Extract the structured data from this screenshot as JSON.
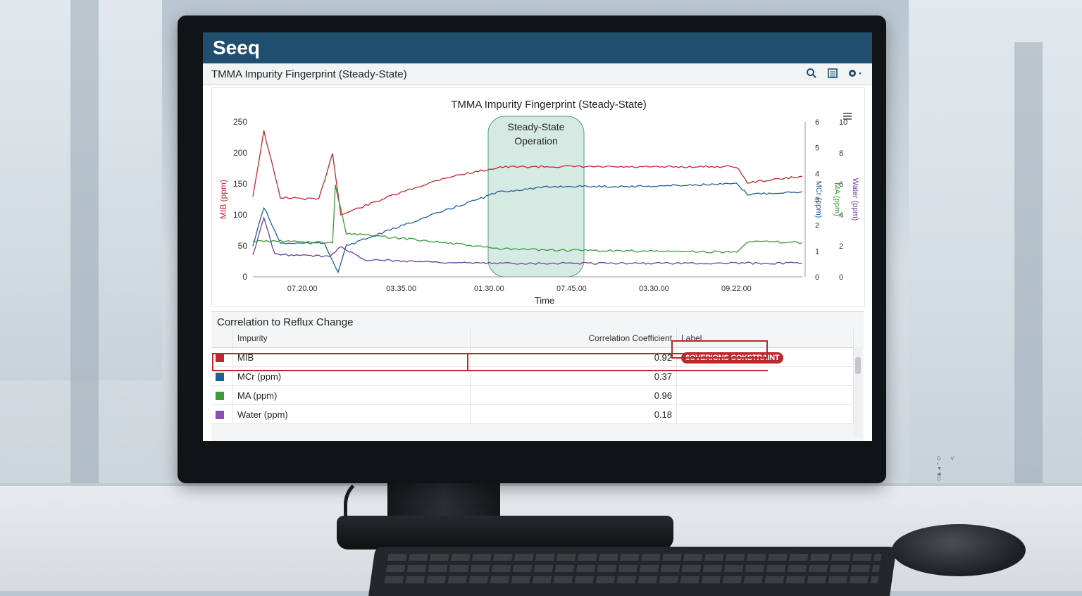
{
  "app": {
    "logo": "Seeq",
    "doc_title": "TMMA Impurity Fingerprint (Steady-State)"
  },
  "toolbar": {
    "icons": [
      "search-icon",
      "list-icon",
      "gear-icon"
    ]
  },
  "chart": {
    "title": "TMMA Impurity Fingerprint (Steady-State)",
    "xlabel": "Time",
    "ylabel_left": "MIB (ppm)",
    "ylabel_right_1": "MCr (ppm)",
    "ylabel_right_2": "MA (ppm)",
    "ylabel_right_3": "Water (ppm)",
    "annotation": "Steady-State Operation",
    "left_ticks": [
      "0",
      "50",
      "100",
      "150",
      "200",
      "250"
    ],
    "right1_ticks": [
      "0",
      "1",
      "2",
      "3",
      "4",
      "5",
      "6"
    ],
    "right2_ticks": [
      "0",
      "2",
      "4",
      "6",
      "8",
      "10"
    ],
    "x_ticks": [
      "07.20.00",
      "03.35.00",
      "01.30.00",
      "07.45.00",
      "03.30.00",
      "09.22.00"
    ],
    "menu_icon": "hamburger-icon"
  },
  "chart_data": {
    "type": "line",
    "title": "TMMA Impurity Fingerprint (Steady-State)",
    "xlabel": "Time",
    "ylabel": "MIB (ppm)",
    "x": [
      "07.20.00",
      "03.35.00",
      "01.30.00",
      "07.45.00",
      "03.30.00",
      "09.22.00"
    ],
    "ylim": [
      0,
      250
    ],
    "colors": {
      "MIB": "#c0262d",
      "MCr": "#1f5f96",
      "MA": "#3a9a3a",
      "Water": "#6a3f9a"
    },
    "series": [
      {
        "name": "MIB",
        "axis": "left",
        "points": [
          [
            0,
            130
          ],
          [
            0.02,
            235
          ],
          [
            0.05,
            128
          ],
          [
            0.12,
            125
          ],
          [
            0.145,
            200
          ],
          [
            0.16,
            100
          ],
          [
            0.25,
            130
          ],
          [
            0.35,
            160
          ],
          [
            0.45,
            177
          ],
          [
            0.55,
            178
          ],
          [
            0.7,
            177
          ],
          [
            0.88,
            178
          ],
          [
            0.9,
            152
          ],
          [
            1,
            162
          ]
        ]
      },
      {
        "name": "MCr",
        "axis": "right1",
        "points": [
          [
            0,
            1.2
          ],
          [
            0.02,
            2.7
          ],
          [
            0.05,
            1.3
          ],
          [
            0.13,
            1.3
          ],
          [
            0.155,
            0.2
          ],
          [
            0.17,
            1.2
          ],
          [
            0.3,
            2.2
          ],
          [
            0.45,
            3.3
          ],
          [
            0.55,
            3.5
          ],
          [
            0.7,
            3.5
          ],
          [
            0.88,
            3.6
          ],
          [
            0.9,
            3.2
          ],
          [
            1,
            3.3
          ]
        ]
      },
      {
        "name": "MA",
        "axis": "right2",
        "points": [
          [
            0,
            2.3
          ],
          [
            0.05,
            2.3
          ],
          [
            0.145,
            2.2
          ],
          [
            0.15,
            5.9
          ],
          [
            0.17,
            2.8
          ],
          [
            0.3,
            2.4
          ],
          [
            0.45,
            1.8
          ],
          [
            0.6,
            1.7
          ],
          [
            0.88,
            1.6
          ],
          [
            0.9,
            2.3
          ],
          [
            1,
            2.2
          ]
        ]
      },
      {
        "name": "Water",
        "axis": "left",
        "points": [
          [
            0,
            35
          ],
          [
            0.02,
            95
          ],
          [
            0.04,
            36
          ],
          [
            0.14,
            33
          ],
          [
            0.16,
            50
          ],
          [
            0.2,
            28
          ],
          [
            0.4,
            22
          ],
          [
            0.7,
            22
          ],
          [
            1,
            22
          ]
        ]
      }
    ],
    "annotation": "Steady-State Operation"
  },
  "correlation": {
    "title": "Correlation to Reflux Change",
    "columns": [
      "Impurity",
      "Correlation Coefficient",
      "Label"
    ],
    "rows": [
      {
        "color": "#c0262d",
        "impurity": "MIB",
        "coef": "0.92",
        "label": "6OVERIONS COKSTRAINT"
      },
      {
        "color": "#1f5f96",
        "impurity": "MCr (ppm)",
        "coef": "0.37",
        "label": ""
      },
      {
        "color": "#3a9a3a",
        "impurity": "MA (ppm)",
        "coef": "0.96",
        "label": ""
      },
      {
        "color": "#8a4fb5",
        "impurity": "Water (ppm)",
        "coef": "0.18",
        "label": ""
      }
    ]
  },
  "monitor_buttons": "OV ◐ ▼ ◀ ⏻"
}
